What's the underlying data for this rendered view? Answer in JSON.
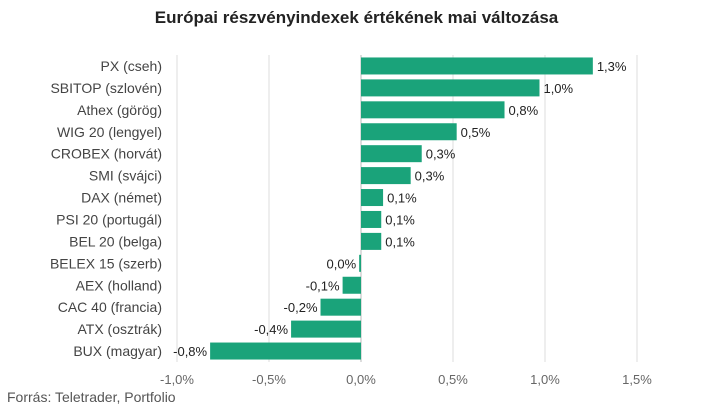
{
  "chart_data": {
    "type": "bar",
    "orientation": "horizontal",
    "title": "Európai részvényindexek értékének mai változása",
    "source": "Forrás: Teletrader, Portfolio",
    "color": "#1aa37a",
    "grid": true,
    "xlim": [
      -1.0,
      1.5
    ],
    "x_ticks": [
      -1.0,
      -0.5,
      0.0,
      0.5,
      1.0,
      1.5
    ],
    "x_tick_labels": [
      "-1,0%",
      "-0,5%",
      "0,0%",
      "0,5%",
      "1,0%",
      "1,5%"
    ],
    "categories": [
      "PX (cseh)",
      "SBITOP (szlovén)",
      "Athex (görög)",
      "WIG 20 (lengyel)",
      "CROBEX (horvát)",
      "SMI (svájci)",
      "DAX (német)",
      "PSI 20 (portugál)",
      "BEL 20 (belga)",
      "BELEX 15 (szerb)",
      "AEX (holland)",
      "CAC 40 (francia)",
      "ATX (osztrák)",
      "BUX (magyar)"
    ],
    "values": [
      1.26,
      0.97,
      0.78,
      0.52,
      0.33,
      0.27,
      0.12,
      0.11,
      0.11,
      -0.01,
      -0.1,
      -0.22,
      -0.38,
      -0.82
    ],
    "value_labels": [
      "1,3%",
      "1,0%",
      "0,8%",
      "0,5%",
      "0,3%",
      "0,3%",
      "0,1%",
      "0,1%",
      "0,1%",
      "0,0%",
      "-0,1%",
      "-0,2%",
      "-0,4%",
      "-0,8%"
    ]
  }
}
